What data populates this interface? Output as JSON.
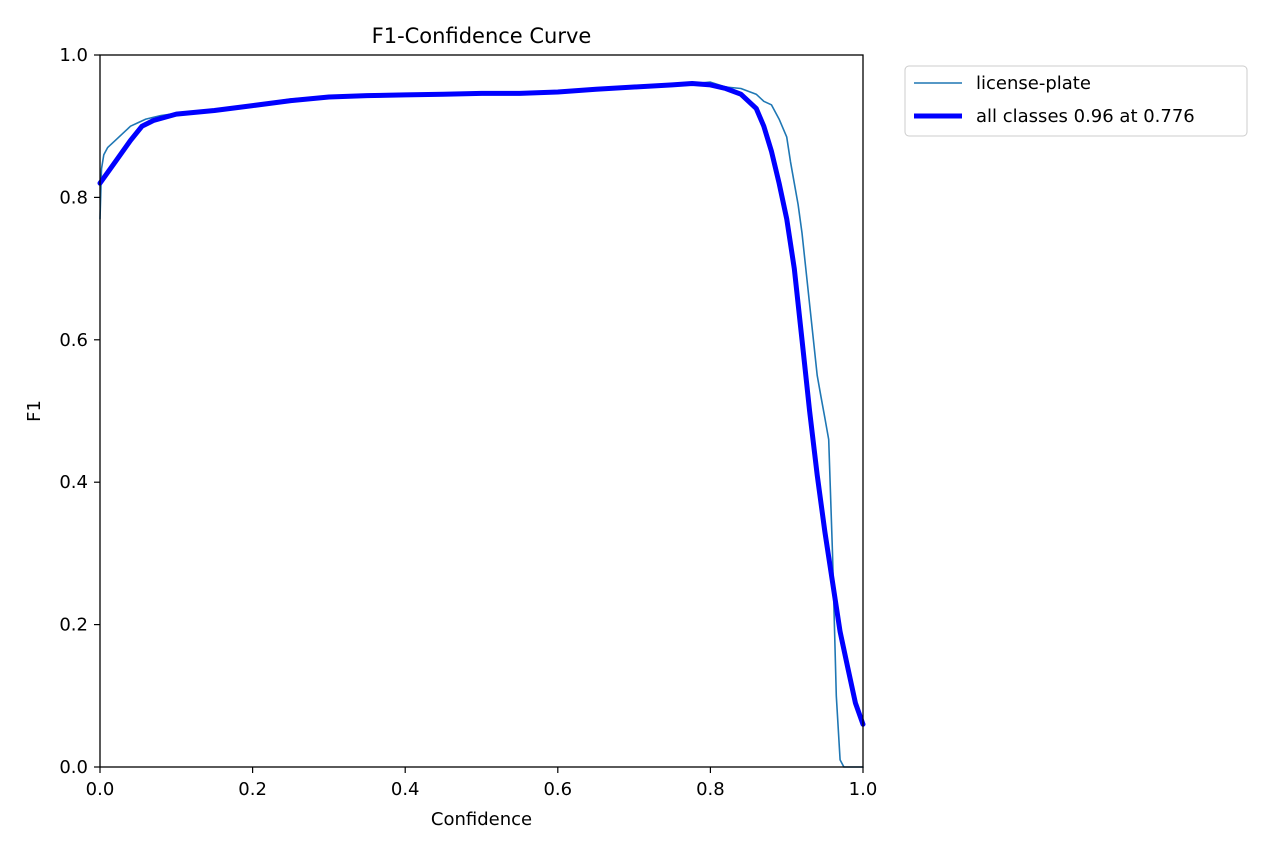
{
  "chart_data": {
    "type": "line",
    "title": "F1-Confidence Curve",
    "xlabel": "Confidence",
    "ylabel": "F1",
    "xlim": [
      0.0,
      1.0
    ],
    "ylim": [
      0.0,
      1.0
    ],
    "xticks": [
      "0.0",
      "0.2",
      "0.4",
      "0.6",
      "0.8",
      "1.0"
    ],
    "yticks": [
      "0.0",
      "0.2",
      "0.4",
      "0.6",
      "0.8",
      "1.0"
    ],
    "grid": false,
    "legend_position": "outside-top-right",
    "series": [
      {
        "name": "license-plate",
        "color": "#1f77b4",
        "points": [
          [
            0.0,
            0.77
          ],
          [
            0.002,
            0.84
          ],
          [
            0.005,
            0.86
          ],
          [
            0.01,
            0.87
          ],
          [
            0.02,
            0.88
          ],
          [
            0.03,
            0.89
          ],
          [
            0.04,
            0.9
          ],
          [
            0.05,
            0.905
          ],
          [
            0.06,
            0.91
          ],
          [
            0.08,
            0.915
          ],
          [
            0.1,
            0.918
          ],
          [
            0.15,
            0.922
          ],
          [
            0.2,
            0.93
          ],
          [
            0.25,
            0.938
          ],
          [
            0.3,
            0.942
          ],
          [
            0.35,
            0.944
          ],
          [
            0.4,
            0.945
          ],
          [
            0.45,
            0.946
          ],
          [
            0.5,
            0.947
          ],
          [
            0.55,
            0.947
          ],
          [
            0.6,
            0.948
          ],
          [
            0.65,
            0.952
          ],
          [
            0.7,
            0.956
          ],
          [
            0.75,
            0.958
          ],
          [
            0.78,
            0.96
          ],
          [
            0.8,
            0.962
          ],
          [
            0.82,
            0.955
          ],
          [
            0.84,
            0.953
          ],
          [
            0.86,
            0.945
          ],
          [
            0.87,
            0.935
          ],
          [
            0.88,
            0.93
          ],
          [
            0.89,
            0.91
          ],
          [
            0.9,
            0.885
          ],
          [
            0.905,
            0.85
          ],
          [
            0.91,
            0.82
          ],
          [
            0.915,
            0.79
          ],
          [
            0.92,
            0.75
          ],
          [
            0.925,
            0.7
          ],
          [
            0.93,
            0.65
          ],
          [
            0.935,
            0.6
          ],
          [
            0.94,
            0.55
          ],
          [
            0.945,
            0.52
          ],
          [
            0.95,
            0.49
          ],
          [
            0.955,
            0.46
          ],
          [
            0.96,
            0.3
          ],
          [
            0.965,
            0.1
          ],
          [
            0.97,
            0.01
          ],
          [
            0.975,
            0.0
          ],
          [
            1.0,
            0.0
          ]
        ]
      },
      {
        "name": "all classes 0.96 at 0.776",
        "color": "#0000ff",
        "points": [
          [
            0.0,
            0.82
          ],
          [
            0.02,
            0.85
          ],
          [
            0.04,
            0.88
          ],
          [
            0.055,
            0.9
          ],
          [
            0.07,
            0.908
          ],
          [
            0.1,
            0.917
          ],
          [
            0.15,
            0.922
          ],
          [
            0.2,
            0.929
          ],
          [
            0.25,
            0.936
          ],
          [
            0.3,
            0.941
          ],
          [
            0.35,
            0.943
          ],
          [
            0.4,
            0.944
          ],
          [
            0.45,
            0.945
          ],
          [
            0.5,
            0.946
          ],
          [
            0.55,
            0.946
          ],
          [
            0.6,
            0.948
          ],
          [
            0.65,
            0.952
          ],
          [
            0.7,
            0.955
          ],
          [
            0.75,
            0.958
          ],
          [
            0.776,
            0.96
          ],
          [
            0.8,
            0.958
          ],
          [
            0.82,
            0.953
          ],
          [
            0.84,
            0.945
          ],
          [
            0.86,
            0.925
          ],
          [
            0.87,
            0.9
          ],
          [
            0.88,
            0.865
          ],
          [
            0.89,
            0.82
          ],
          [
            0.9,
            0.77
          ],
          [
            0.91,
            0.7
          ],
          [
            0.92,
            0.6
          ],
          [
            0.93,
            0.5
          ],
          [
            0.94,
            0.41
          ],
          [
            0.95,
            0.33
          ],
          [
            0.96,
            0.26
          ],
          [
            0.97,
            0.19
          ],
          [
            0.98,
            0.14
          ],
          [
            0.99,
            0.09
          ],
          [
            1.0,
            0.06
          ]
        ]
      }
    ]
  }
}
